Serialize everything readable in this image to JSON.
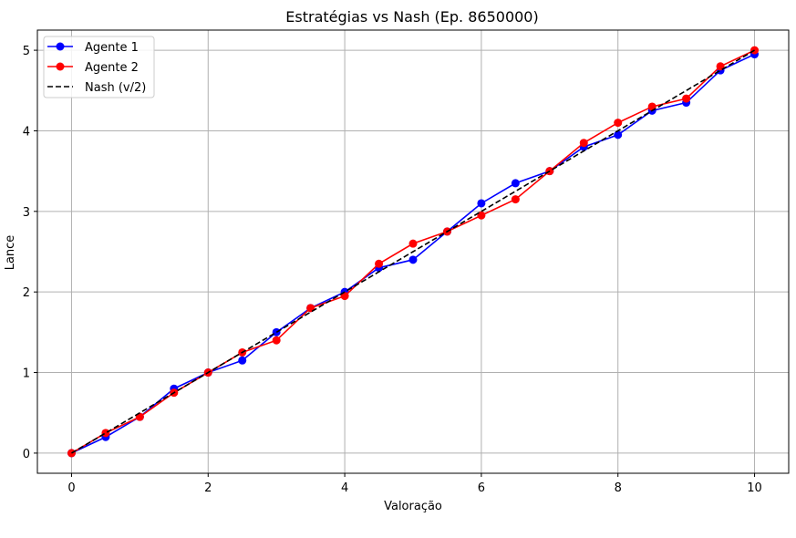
{
  "chart_data": {
    "type": "line",
    "title": "Estratégias vs Nash (Ep. 8650000)",
    "xlabel": "Valoração",
    "ylabel": "Lance",
    "xlim": [
      -0.5,
      10.5
    ],
    "ylim": [
      -0.25,
      5.25
    ],
    "xticks": [
      0,
      2,
      4,
      6,
      8,
      10
    ],
    "yticks": [
      0,
      1,
      2,
      3,
      4,
      5
    ],
    "grid": true,
    "legend_position": "top-left",
    "x": [
      0,
      0.5,
      1,
      1.5,
      2,
      2.5,
      3,
      3.5,
      4,
      4.5,
      5,
      5.5,
      6,
      6.5,
      7,
      7.5,
      8,
      8.5,
      9,
      9.5,
      10
    ],
    "series": [
      {
        "name": "Agente 1",
        "color": "#0000ff",
        "marker": "circle",
        "values": [
          0,
          0.2,
          0.45,
          0.8,
          1.0,
          1.15,
          1.5,
          1.8,
          2.0,
          2.3,
          2.4,
          2.75,
          3.1,
          3.35,
          3.5,
          3.8,
          3.95,
          4.25,
          4.35,
          4.75,
          4.95
        ]
      },
      {
        "name": "Agente 2",
        "color": "#ff0000",
        "marker": "circle",
        "values": [
          0,
          0.25,
          0.45,
          0.75,
          1.0,
          1.25,
          1.4,
          1.8,
          1.95,
          2.35,
          2.6,
          2.75,
          2.95,
          3.15,
          3.5,
          3.85,
          4.1,
          4.3,
          4.4,
          4.8,
          5.0
        ]
      },
      {
        "name": "Nash (v/2)",
        "color": "#000000",
        "style": "dashed",
        "values": [
          0,
          0.25,
          0.5,
          0.75,
          1.0,
          1.25,
          1.5,
          1.75,
          2.0,
          2.25,
          2.5,
          2.75,
          3.0,
          3.25,
          3.5,
          3.75,
          4.0,
          4.25,
          4.5,
          4.75,
          5.0
        ]
      }
    ]
  }
}
